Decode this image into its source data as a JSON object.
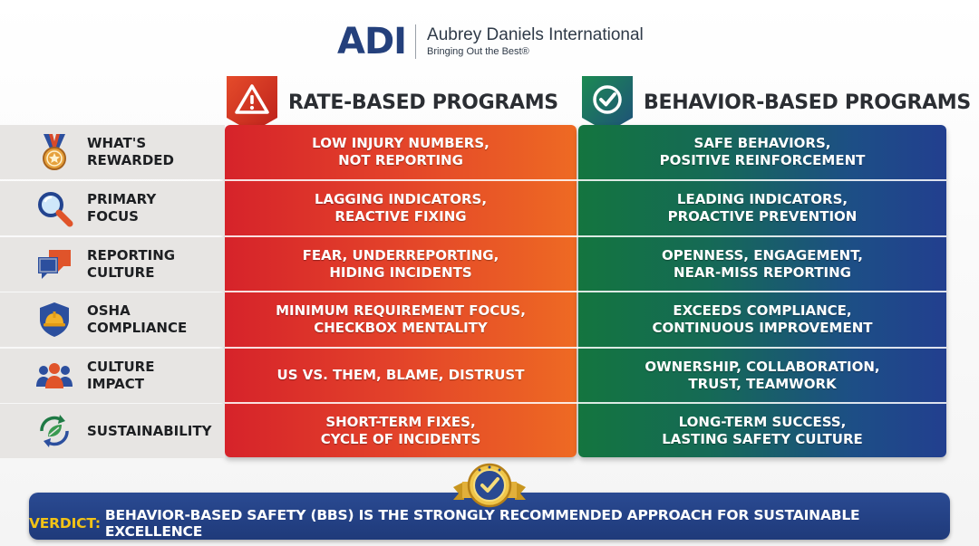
{
  "header": {
    "logo_text": "ADI",
    "company_name": "Aubrey Daniels International",
    "tagline": "Bringing Out the Best®"
  },
  "columns": {
    "rate_title": "RATE-BASED PROGRAMS",
    "rate_icon": "warning-icon",
    "behavior_title": "BEHAVIOR-BASED PROGRAMS",
    "behavior_icon": "check-circle-icon"
  },
  "rows": [
    {
      "label": "WHAT'S\nREWARDED",
      "icon": "medal-icon",
      "rate": "LOW INJURY NUMBERS,\nNOT REPORTING",
      "behavior": "SAFE BEHAVIORS,\nPOSITIVE REINFORCEMENT"
    },
    {
      "label": "PRIMARY\nFOCUS",
      "icon": "magnifier-icon",
      "rate": "LAGGING INDICATORS,\nREACTIVE FIXING",
      "behavior": "LEADING INDICATORS,\nPROACTIVE PREVENTION"
    },
    {
      "label": "REPORTING\nCULTURE",
      "icon": "chat-bubbles-icon",
      "rate": "FEAR, UNDERREPORTING,\nHIDING INCIDENTS",
      "behavior": "OPENNESS, ENGAGEMENT,\nNEAR-MISS REPORTING"
    },
    {
      "label": "OSHA\nCOMPLIANCE",
      "icon": "shield-hardhat-icon",
      "rate": "MINIMUM REQUIREMENT FOCUS,\nCHECKBOX MENTALITY",
      "behavior": "EXCEEDS COMPLIANCE,\nCONTINUOUS IMPROVEMENT"
    },
    {
      "label": "CULTURE\nIMPACT",
      "icon": "people-icon",
      "rate": "US VS. THEM, BLAME, DISTRUST",
      "behavior": "OWNERSHIP, COLLABORATION,\nTRUST, TEAMWORK"
    },
    {
      "label": "SUSTAINABILITY",
      "icon": "recycle-leaf-icon",
      "rate": "SHORT-TERM FIXES,\nCYCLE OF INCIDENTS",
      "behavior": "LONG-TERM SUCCESS,\nLASTING SAFETY CULTURE"
    }
  ],
  "verdict": {
    "label": "VERDICT:",
    "text": "BEHAVIOR-BASED SAFETY (BBS) IS THE STRONGLY RECOMMENDED APPROACH FOR SUSTAINABLE EXCELLENCE",
    "seal_icon": "check-seal-icon"
  },
  "colors": {
    "brand_blue": "#24407c",
    "rate_red": "#d6232a",
    "rate_orange": "#ee6a23",
    "behavior_green": "#14753f",
    "behavior_blue": "#223f8f",
    "verdict_gold": "#f3c316"
  }
}
